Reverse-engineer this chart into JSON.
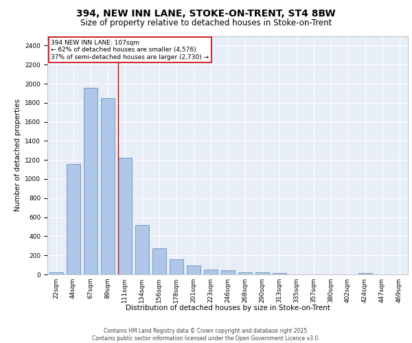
{
  "title_line1": "394, NEW INN LANE, STOKE-ON-TRENT, ST4 8BW",
  "title_line2": "Size of property relative to detached houses in Stoke-on-Trent",
  "xlabel": "Distribution of detached houses by size in Stoke-on-Trent",
  "ylabel": "Number of detached properties",
  "categories": [
    "22sqm",
    "44sqm",
    "67sqm",
    "89sqm",
    "111sqm",
    "134sqm",
    "156sqm",
    "178sqm",
    "201sqm",
    "223sqm",
    "246sqm",
    "268sqm",
    "290sqm",
    "313sqm",
    "335sqm",
    "357sqm",
    "380sqm",
    "402sqm",
    "424sqm",
    "447sqm",
    "469sqm"
  ],
  "values": [
    25,
    1155,
    1960,
    1850,
    1225,
    515,
    270,
    155,
    90,
    48,
    42,
    25,
    20,
    15,
    0,
    0,
    0,
    0,
    12,
    0,
    0
  ],
  "bar_color": "#aec6e8",
  "bar_edge_color": "#5580b0",
  "background_color": "#e8eef7",
  "grid_color": "#ffffff",
  "annotation_text": "394 NEW INN LANE: 107sqm\n← 62% of detached houses are smaller (4,576)\n37% of semi-detached houses are larger (2,730) →",
  "annotation_box_color": "#ffffff",
  "annotation_box_edge": "#cc0000",
  "vline_x_index": 4,
  "vline_color": "#cc0000",
  "ylim": [
    0,
    2500
  ],
  "yticks": [
    0,
    200,
    400,
    600,
    800,
    1000,
    1200,
    1400,
    1600,
    1800,
    2000,
    2200,
    2400
  ],
  "footer_line1": "Contains HM Land Registry data © Crown copyright and database right 2025.",
  "footer_line2": "Contains public sector information licensed under the Open Government Licence v3.0.",
  "title_fontsize": 10,
  "subtitle_fontsize": 8.5,
  "axis_label_fontsize": 7.5,
  "tick_fontsize": 6.5,
  "annotation_fontsize": 6.5,
  "footer_fontsize": 5.5
}
